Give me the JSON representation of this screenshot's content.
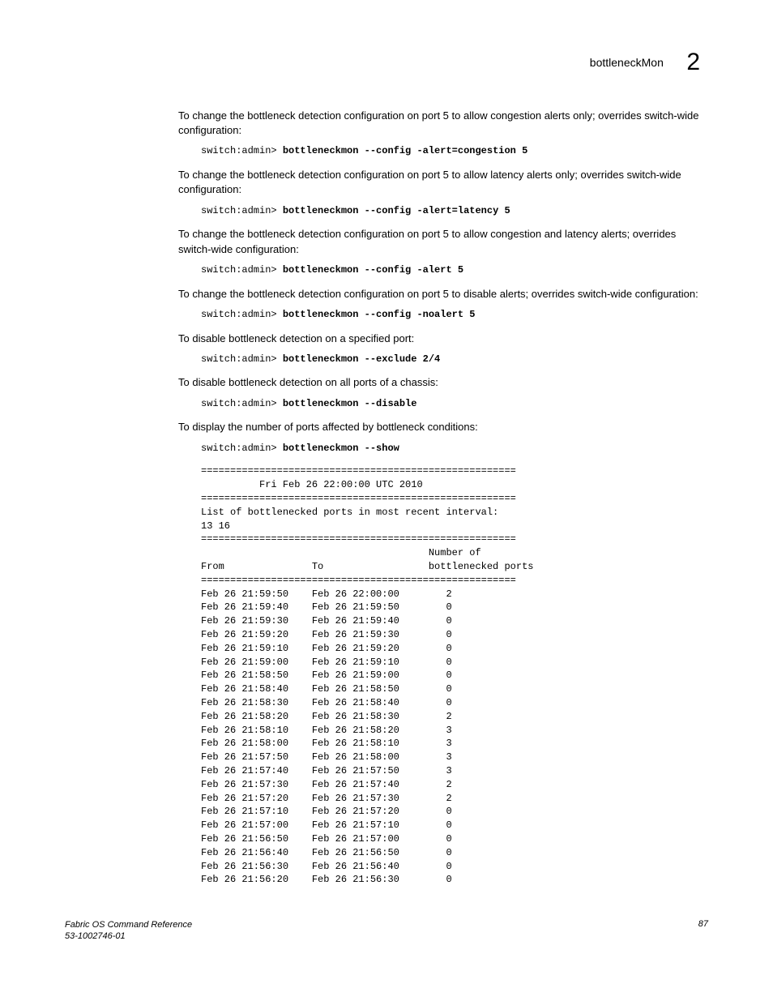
{
  "header": {
    "title": "bottleneckMon",
    "number": "2"
  },
  "sections": [
    {
      "desc": "To change the bottleneck detection configuration on port 5 to allow congestion alerts only; overrides switch-wide configuration:",
      "prompt": "switch:admin> ",
      "cmd": "bottleneckmon --config -alert=congestion 5"
    },
    {
      "desc": "To change the bottleneck detection configuration on port 5 to allow latency alerts only; overrides switch-wide configuration:",
      "prompt": "switch:admin> ",
      "cmd": "bottleneckmon --config -alert=latency 5"
    },
    {
      "desc": "To change the bottleneck detection configuration on port 5 to allow congestion and latency alerts; overrides switch-wide configuration:",
      "prompt": "switch:admin> ",
      "cmd": "bottleneckmon --config -alert 5"
    },
    {
      "desc": "To change the bottleneck detection configuration on port 5 to disable alerts; overrides switch-wide configuration:",
      "prompt": "switch:admin> ",
      "cmd": "bottleneckmon --config -noalert 5"
    },
    {
      "desc": "To disable bottleneck detection on a specified port:",
      "prompt": "switch:admin> ",
      "cmd": "bottleneckmon --exclude 2/4"
    },
    {
      "desc": "To disable bottleneck detection on all ports of a chassis:",
      "prompt": "switch:admin> ",
      "cmd": "bottleneckmon --disable"
    },
    {
      "desc": "To display the number of ports affected by bottleneck conditions:",
      "prompt": "switch:admin> ",
      "cmd": "bottleneckmon --show"
    }
  ],
  "output": "======================================================\n          Fri Feb 26 22:00:00 UTC 2010\n======================================================\nList of bottlenecked ports in most recent interval:\n13 16\n======================================================\n                                       Number of\nFrom               To                  bottlenecked ports\n======================================================\nFeb 26 21:59:50    Feb 26 22:00:00        2\nFeb 26 21:59:40    Feb 26 21:59:50        0\nFeb 26 21:59:30    Feb 26 21:59:40        0\nFeb 26 21:59:20    Feb 26 21:59:30        0\nFeb 26 21:59:10    Feb 26 21:59:20        0\nFeb 26 21:59:00    Feb 26 21:59:10        0\nFeb 26 21:58:50    Feb 26 21:59:00        0\nFeb 26 21:58:40    Feb 26 21:58:50        0\nFeb 26 21:58:30    Feb 26 21:58:40        0\nFeb 26 21:58:20    Feb 26 21:58:30        2\nFeb 26 21:58:10    Feb 26 21:58:20        3\nFeb 26 21:58:00    Feb 26 21:58:10        3\nFeb 26 21:57:50    Feb 26 21:58:00        3\nFeb 26 21:57:40    Feb 26 21:57:50        3\nFeb 26 21:57:30    Feb 26 21:57:40        2\nFeb 26 21:57:20    Feb 26 21:57:30        2\nFeb 26 21:57:10    Feb 26 21:57:20        0\nFeb 26 21:57:00    Feb 26 21:57:10        0\nFeb 26 21:56:50    Feb 26 21:57:00        0\nFeb 26 21:56:40    Feb 26 21:56:50        0\nFeb 26 21:56:30    Feb 26 21:56:40        0\nFeb 26 21:56:20    Feb 26 21:56:30        0",
  "footer": {
    "ref_title": "Fabric OS Command Reference",
    "ref_num": "53-1002746-01",
    "page": "87"
  }
}
